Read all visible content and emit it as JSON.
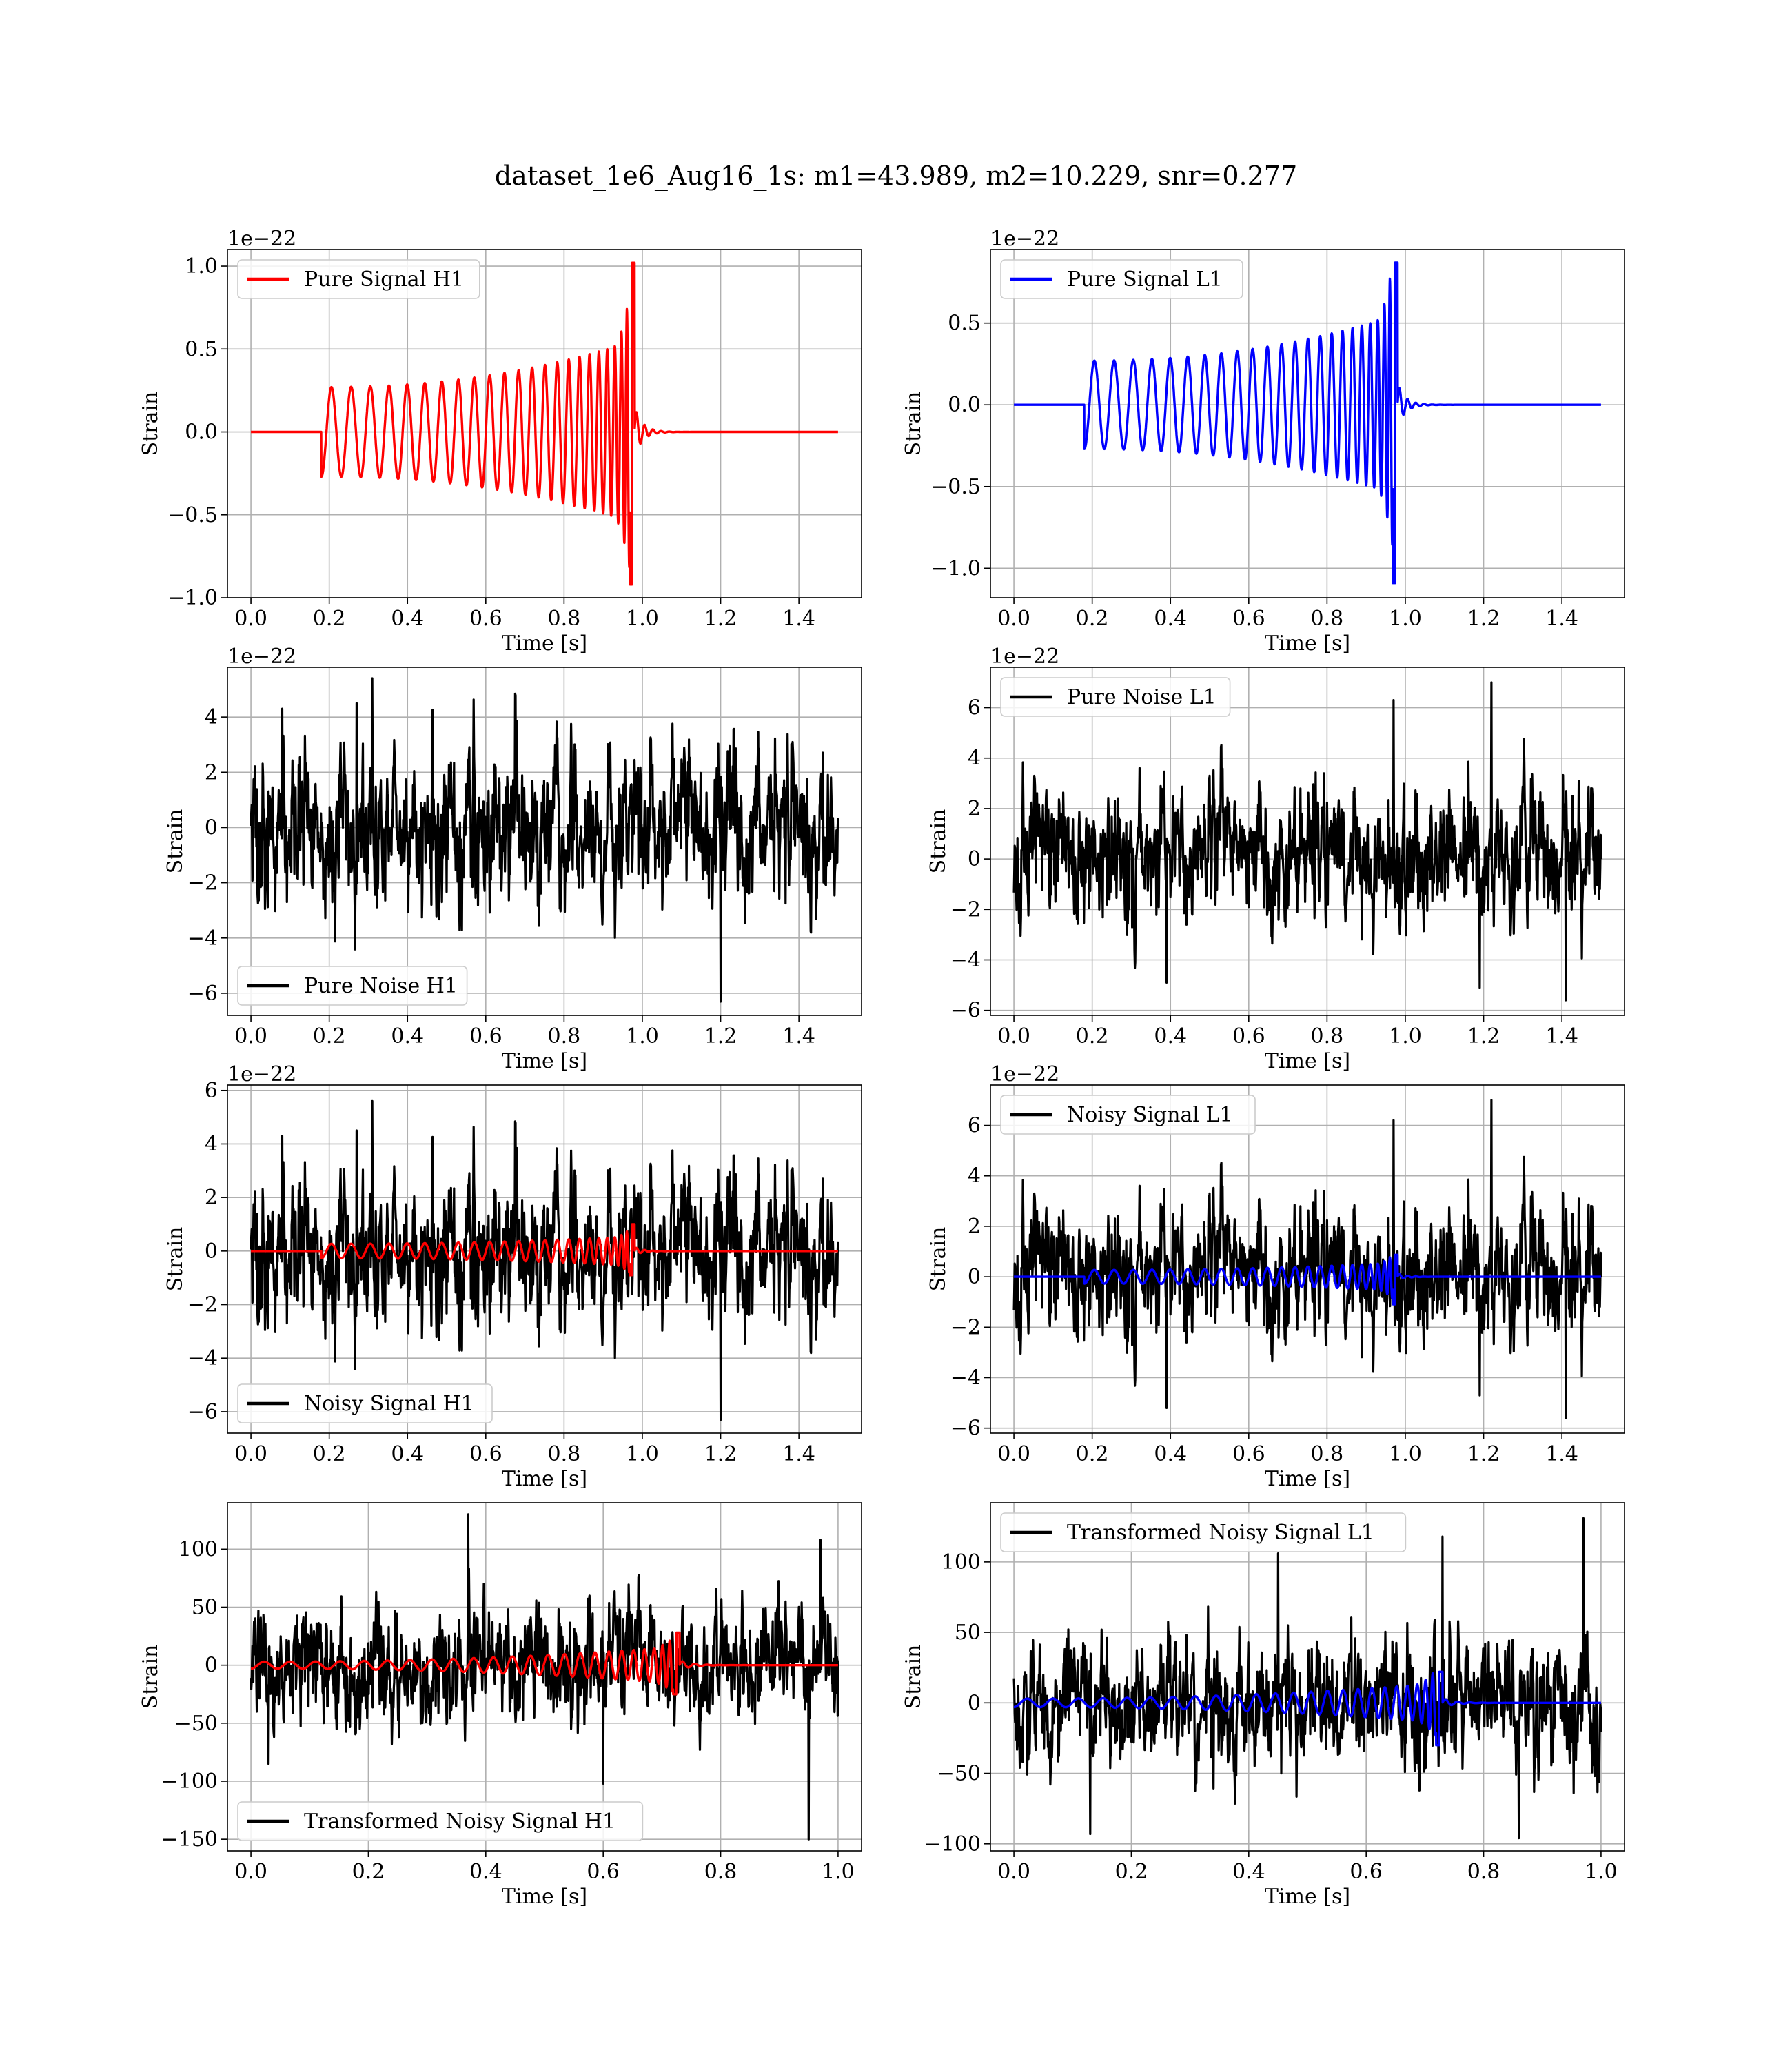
{
  "suptitle": "dataset_1e6_Aug16_1s: m1=43.989, m2=10.229, snr=0.277",
  "colors": {
    "signal_h1": "#ff0000",
    "signal_l1": "#0000ff",
    "noise": "#000000",
    "grid": "#b0b0b0"
  },
  "chart_data": [
    {
      "type": "line",
      "id": "pure-signal-h1",
      "xlabel": "Time [s]",
      "ylabel": "Strain",
      "offset_text": "1e−22",
      "xlim": [
        -0.06,
        1.56
      ],
      "ylim": [
        -1.0,
        1.1
      ],
      "xticks": [
        0.0,
        0.2,
        0.4,
        0.6,
        0.8,
        1.0,
        1.2,
        1.4
      ],
      "xtick_labels": [
        "0.0",
        "0.2",
        "0.4",
        "0.6",
        "0.8",
        "1.0",
        "1.2",
        "1.4"
      ],
      "yticks": [
        -1.0,
        -0.5,
        0.0,
        0.5,
        1.0
      ],
      "ytick_labels": [
        "−1.0",
        "−0.5",
        "0.0",
        "0.5",
        "1.0"
      ],
      "grid": true,
      "legend_loc": "upper left",
      "series": [
        {
          "name": "Pure Signal H1",
          "kind": "chirp",
          "color": "#ff0000",
          "legend": true,
          "t_start": 0.18,
          "t_merge": 0.98,
          "t_end": 1.5,
          "peak": 1.02,
          "trough": -0.92,
          "start_amp": 0.27,
          "end_amp": 0.55,
          "cycles": 25
        }
      ]
    },
    {
      "type": "line",
      "id": "pure-signal-l1",
      "xlabel": "Time [s]",
      "ylabel": "Strain",
      "offset_text": "1e−22",
      "xlim": [
        -0.06,
        1.56
      ],
      "ylim": [
        -1.18,
        0.95
      ],
      "xticks": [
        0.0,
        0.2,
        0.4,
        0.6,
        0.8,
        1.0,
        1.2,
        1.4
      ],
      "xtick_labels": [
        "0.0",
        "0.2",
        "0.4",
        "0.6",
        "0.8",
        "1.0",
        "1.2",
        "1.4"
      ],
      "yticks": [
        -1.0,
        -0.5,
        0.0,
        0.5
      ],
      "ytick_labels": [
        "−1.0",
        "−0.5",
        "0.0",
        "0.5"
      ],
      "grid": true,
      "legend_loc": "upper left",
      "series": [
        {
          "name": "Pure Signal L1",
          "kind": "chirp",
          "color": "#0000ff",
          "legend": true,
          "t_start": 0.18,
          "t_merge": 0.98,
          "t_end": 1.5,
          "peak": 0.87,
          "trough": -1.09,
          "start_amp": 0.27,
          "end_amp": 0.55,
          "cycles": 25
        }
      ]
    },
    {
      "type": "line",
      "id": "pure-noise-h1",
      "xlabel": "Time [s]",
      "ylabel": "Strain",
      "offset_text": "1e−22",
      "xlim": [
        -0.06,
        1.56
      ],
      "ylim": [
        -6.8,
        5.8
      ],
      "xticks": [
        0.0,
        0.2,
        0.4,
        0.6,
        0.8,
        1.0,
        1.2,
        1.4
      ],
      "xtick_labels": [
        "0.0",
        "0.2",
        "0.4",
        "0.6",
        "0.8",
        "1.0",
        "1.2",
        "1.4"
      ],
      "yticks": [
        -6,
        -4,
        -2,
        0,
        2,
        4
      ],
      "ytick_labels": [
        "−6",
        "−4",
        "−2",
        "0",
        "2",
        "4"
      ],
      "grid": true,
      "legend_loc": "lower left",
      "series": [
        {
          "name": "Pure Noise H1",
          "kind": "noise",
          "color": "#000000",
          "legend": true,
          "t_start": 0.0,
          "t_end": 1.5,
          "sigma": 1.7,
          "seed": 11,
          "spikes": [
            [
              0.31,
              5.4
            ],
            [
              1.2,
              -6.3
            ],
            [
              0.08,
              4.3
            ],
            [
              0.27,
              4.5
            ]
          ]
        }
      ]
    },
    {
      "type": "line",
      "id": "pure-noise-l1",
      "xlabel": "Time [s]",
      "ylabel": "Strain",
      "offset_text": "1e−22",
      "xlim": [
        -0.06,
        1.56
      ],
      "ylim": [
        -6.2,
        7.6
      ],
      "xticks": [
        0.0,
        0.2,
        0.4,
        0.6,
        0.8,
        1.0,
        1.2,
        1.4
      ],
      "xtick_labels": [
        "0.0",
        "0.2",
        "0.4",
        "0.6",
        "0.8",
        "1.0",
        "1.2",
        "1.4"
      ],
      "yticks": [
        -6,
        -4,
        -2,
        0,
        2,
        4,
        6
      ],
      "ytick_labels": [
        "−6",
        "−4",
        "−2",
        "0",
        "2",
        "4",
        "6"
      ],
      "grid": true,
      "legend_loc": "upper left",
      "series": [
        {
          "name": "Pure Noise L1",
          "kind": "noise",
          "color": "#000000",
          "legend": true,
          "t_start": 0.0,
          "t_end": 1.5,
          "sigma": 1.6,
          "seed": 23,
          "spikes": [
            [
              1.22,
              7.0
            ],
            [
              0.97,
              6.3
            ],
            [
              1.41,
              -5.6
            ],
            [
              1.19,
              -5.1
            ],
            [
              0.39,
              -4.9
            ]
          ]
        }
      ]
    },
    {
      "type": "line",
      "id": "noisy-signal-h1",
      "xlabel": "Time [s]",
      "ylabel": "Strain",
      "offset_text": "1e−22",
      "xlim": [
        -0.06,
        1.56
      ],
      "ylim": [
        -6.8,
        6.2
      ],
      "xticks": [
        0.0,
        0.2,
        0.4,
        0.6,
        0.8,
        1.0,
        1.2,
        1.4
      ],
      "xtick_labels": [
        "0.0",
        "0.2",
        "0.4",
        "0.6",
        "0.8",
        "1.0",
        "1.2",
        "1.4"
      ],
      "yticks": [
        -6,
        -4,
        -2,
        0,
        2,
        4,
        6
      ],
      "ytick_labels": [
        "−6",
        "−4",
        "−2",
        "0",
        "2",
        "4",
        "6"
      ],
      "grid": true,
      "legend_loc": "lower left",
      "series": [
        {
          "name": "Noisy Signal H1",
          "kind": "noise",
          "color": "#000000",
          "legend": true,
          "t_start": 0.0,
          "t_end": 1.5,
          "sigma": 1.7,
          "seed": 11,
          "spikes": [
            [
              0.31,
              5.6
            ],
            [
              1.2,
              -6.3
            ],
            [
              0.08,
              4.3
            ],
            [
              0.27,
              4.5
            ]
          ]
        },
        {
          "name": "",
          "kind": "chirp",
          "color": "#ff0000",
          "legend": false,
          "t_start": 0.18,
          "t_merge": 0.98,
          "t_end": 1.5,
          "peak": 1.0,
          "trough": -0.9,
          "start_amp": 0.27,
          "end_amp": 0.55,
          "cycles": 25
        }
      ]
    },
    {
      "type": "line",
      "id": "noisy-signal-l1",
      "xlabel": "Time [s]",
      "ylabel": "Strain",
      "offset_text": "1e−22",
      "xlim": [
        -0.06,
        1.56
      ],
      "ylim": [
        -6.2,
        7.6
      ],
      "xticks": [
        0.0,
        0.2,
        0.4,
        0.6,
        0.8,
        1.0,
        1.2,
        1.4
      ],
      "xtick_labels": [
        "0.0",
        "0.2",
        "0.4",
        "0.6",
        "0.8",
        "1.0",
        "1.2",
        "1.4"
      ],
      "yticks": [
        -6,
        -4,
        -2,
        0,
        2,
        4,
        6
      ],
      "ytick_labels": [
        "−6",
        "−4",
        "−2",
        "0",
        "2",
        "4",
        "6"
      ],
      "grid": true,
      "legend_loc": "upper left",
      "series": [
        {
          "name": "Noisy Signal L1",
          "kind": "noise",
          "color": "#000000",
          "legend": true,
          "t_start": 0.0,
          "t_end": 1.5,
          "sigma": 1.6,
          "seed": 23,
          "spikes": [
            [
              1.22,
              7.0
            ],
            [
              0.97,
              6.2
            ],
            [
              1.41,
              -5.6
            ],
            [
              1.19,
              -4.7
            ],
            [
              0.39,
              -5.2
            ]
          ]
        },
        {
          "name": "",
          "kind": "chirp",
          "color": "#0000ff",
          "legend": false,
          "t_start": 0.18,
          "t_merge": 0.98,
          "t_end": 1.5,
          "peak": 0.87,
          "trough": -1.09,
          "start_amp": 0.27,
          "end_amp": 0.55,
          "cycles": 25
        }
      ]
    },
    {
      "type": "line",
      "id": "transformed-noisy-signal-h1",
      "xlabel": "Time [s]",
      "ylabel": "Strain",
      "offset_text": "",
      "xlim": [
        -0.04,
        1.04
      ],
      "ylim": [
        -160,
        140
      ],
      "xticks": [
        0.0,
        0.2,
        0.4,
        0.6,
        0.8,
        1.0
      ],
      "xtick_labels": [
        "0.0",
        "0.2",
        "0.4",
        "0.6",
        "0.8",
        "1.0"
      ],
      "yticks": [
        -150,
        -100,
        -50,
        0,
        50,
        100
      ],
      "ytick_labels": [
        "−150",
        "−100",
        "−50",
        "0",
        "50",
        "100"
      ],
      "grid": true,
      "legend_loc": "lower left",
      "series": [
        {
          "name": "Transformed Noisy Signal H1",
          "kind": "noise",
          "color": "#000000",
          "legend": true,
          "t_start": 0.0,
          "t_end": 1.0,
          "sigma": 30,
          "seed": 37,
          "spikes": [
            [
              0.37,
              130
            ],
            [
              0.95,
              -150
            ],
            [
              0.6,
              -102
            ],
            [
              0.97,
              108
            ],
            [
              0.03,
              -85
            ]
          ]
        },
        {
          "name": "",
          "kind": "chirp",
          "color": "#ff0000",
          "legend": false,
          "t_start": 0.0,
          "t_merge": 0.73,
          "t_end": 1.0,
          "peak": 28,
          "trough": -25,
          "start_amp": 3,
          "end_amp": 16,
          "cycles": 26
        }
      ]
    },
    {
      "type": "line",
      "id": "transformed-noisy-signal-l1",
      "xlabel": "Time [s]",
      "ylabel": "Strain",
      "offset_text": "",
      "xlim": [
        -0.04,
        1.04
      ],
      "ylim": [
        -105,
        142
      ],
      "xticks": [
        0.0,
        0.2,
        0.4,
        0.6,
        0.8,
        1.0
      ],
      "xtick_labels": [
        "0.0",
        "0.2",
        "0.4",
        "0.6",
        "0.8",
        "1.0"
      ],
      "yticks": [
        -100,
        -50,
        0,
        50,
        100
      ],
      "ytick_labels": [
        "−100",
        "−50",
        "0",
        "50",
        "100"
      ],
      "grid": true,
      "legend_loc": "upper left",
      "series": [
        {
          "name": "Transformed Noisy Signal L1",
          "kind": "noise",
          "color": "#000000",
          "legend": true,
          "t_start": 0.0,
          "t_end": 1.0,
          "sigma": 28,
          "seed": 53,
          "spikes": [
            [
              0.97,
              131
            ],
            [
              0.45,
              106
            ],
            [
              0.73,
              118
            ],
            [
              0.13,
              -93
            ],
            [
              0.86,
              -96
            ]
          ]
        },
        {
          "name": "",
          "kind": "chirp",
          "color": "#0000ff",
          "legend": false,
          "t_start": 0.0,
          "t_merge": 0.73,
          "t_end": 1.0,
          "peak": 22,
          "trough": -30,
          "start_amp": 3,
          "end_amp": 14,
          "cycles": 26
        }
      ]
    }
  ]
}
